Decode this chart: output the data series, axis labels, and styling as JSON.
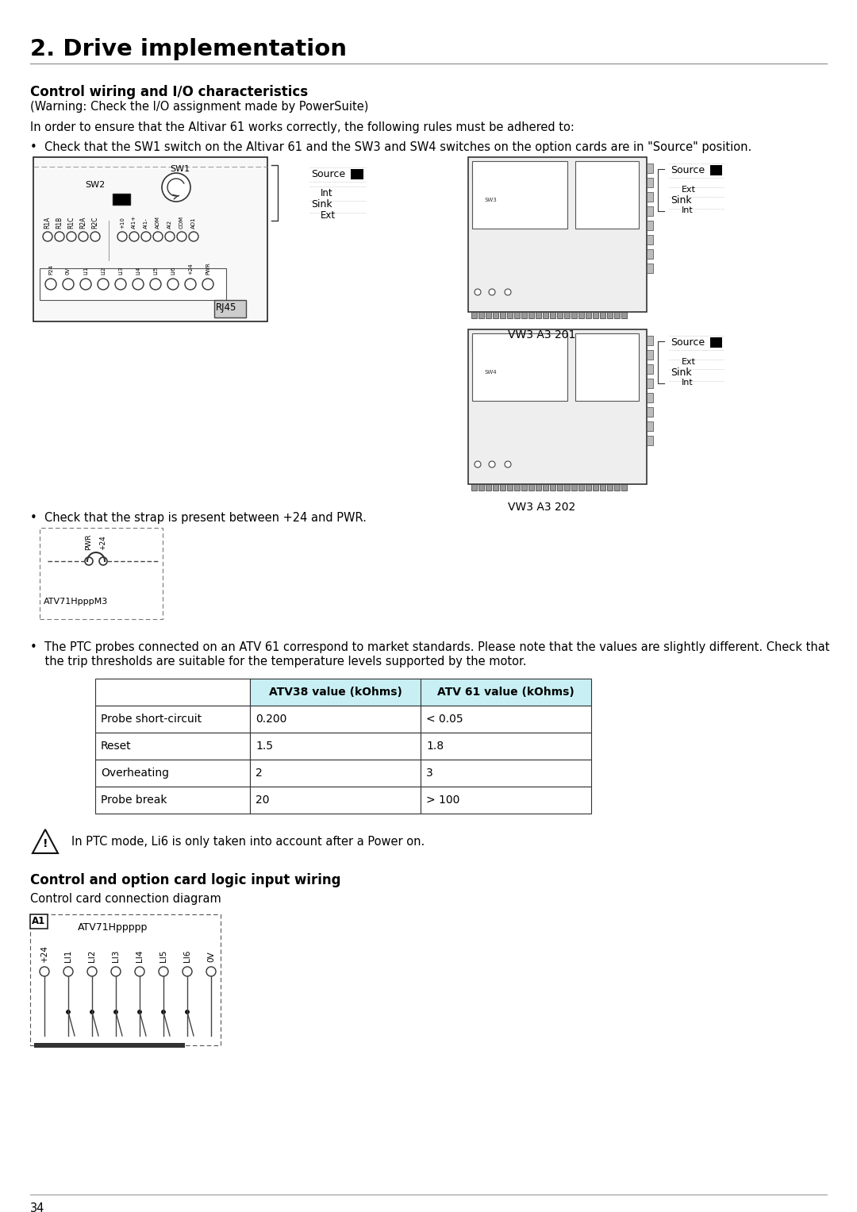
{
  "page_title": "2. Drive implementation",
  "section1_title": "Control wiring and I/O characteristics",
  "section1_subtitle": "(Warning: Check the I/O assignment made by PowerSuite)",
  "para1": "In order to ensure that the Altivar 61 works correctly, the following rules must be adhered to:",
  "bullet1": "•  Check that the SW1 switch on the Altivar 61 and the SW3 and SW4 switches on the option cards are in \"Source\" position.",
  "bullet2": "•  Check that the strap is present between +24 and PWR.",
  "bullet3_line1": "•  The PTC probes connected on an ATV 61 correspond to market standards. Please note that the values are slightly different. Check that",
  "bullet3_line2": "    the trip thresholds are suitable for the temperature levels supported by the motor.",
  "table_headers": [
    "",
    "ATV38 value (kOhms)",
    "ATV 61 value (kOhms)"
  ],
  "table_rows": [
    [
      "Probe short-circuit",
      "0.200",
      "< 0.05"
    ],
    [
      "Reset",
      "1.5",
      "1.8"
    ],
    [
      "Overheating",
      "2",
      "3"
    ],
    [
      "Probe break",
      "20",
      "> 100"
    ]
  ],
  "warning_text": "In PTC mode, Li6 is only taken into account after a Power on.",
  "section2_title": "Control and option card logic input wiring",
  "section2_subtitle": "Control card connection diagram",
  "atv_label": "ATV71Hppppp",
  "terminal_labels": [
    "+24",
    "LI1",
    "LI2",
    "LI3",
    "LI4",
    "LI5",
    "LI6",
    "0V"
  ],
  "vw3_201_label": "VW3 A3 201",
  "vw3_202_label": "VW3 A3 202",
  "atv71_label": "ATV71HpppM3",
  "page_number": "34",
  "bg_color": "#ffffff",
  "text_color": "#000000",
  "table_header_bg": "#c8f0f4",
  "diagram_line": "#000000",
  "relay_labels": [
    "R1A",
    "R1B",
    "R1C",
    "R2A",
    "R2C"
  ],
  "analog_labels": [
    "+10",
    "AI1+",
    "AI1-",
    "AOM",
    "AI2",
    "COM",
    "AO1"
  ],
  "lower_labels": [
    "P24",
    "0V",
    "LI1",
    "LI2",
    "LI3",
    "LI4",
    "LI5",
    "LI6",
    "+24",
    "PWR"
  ]
}
